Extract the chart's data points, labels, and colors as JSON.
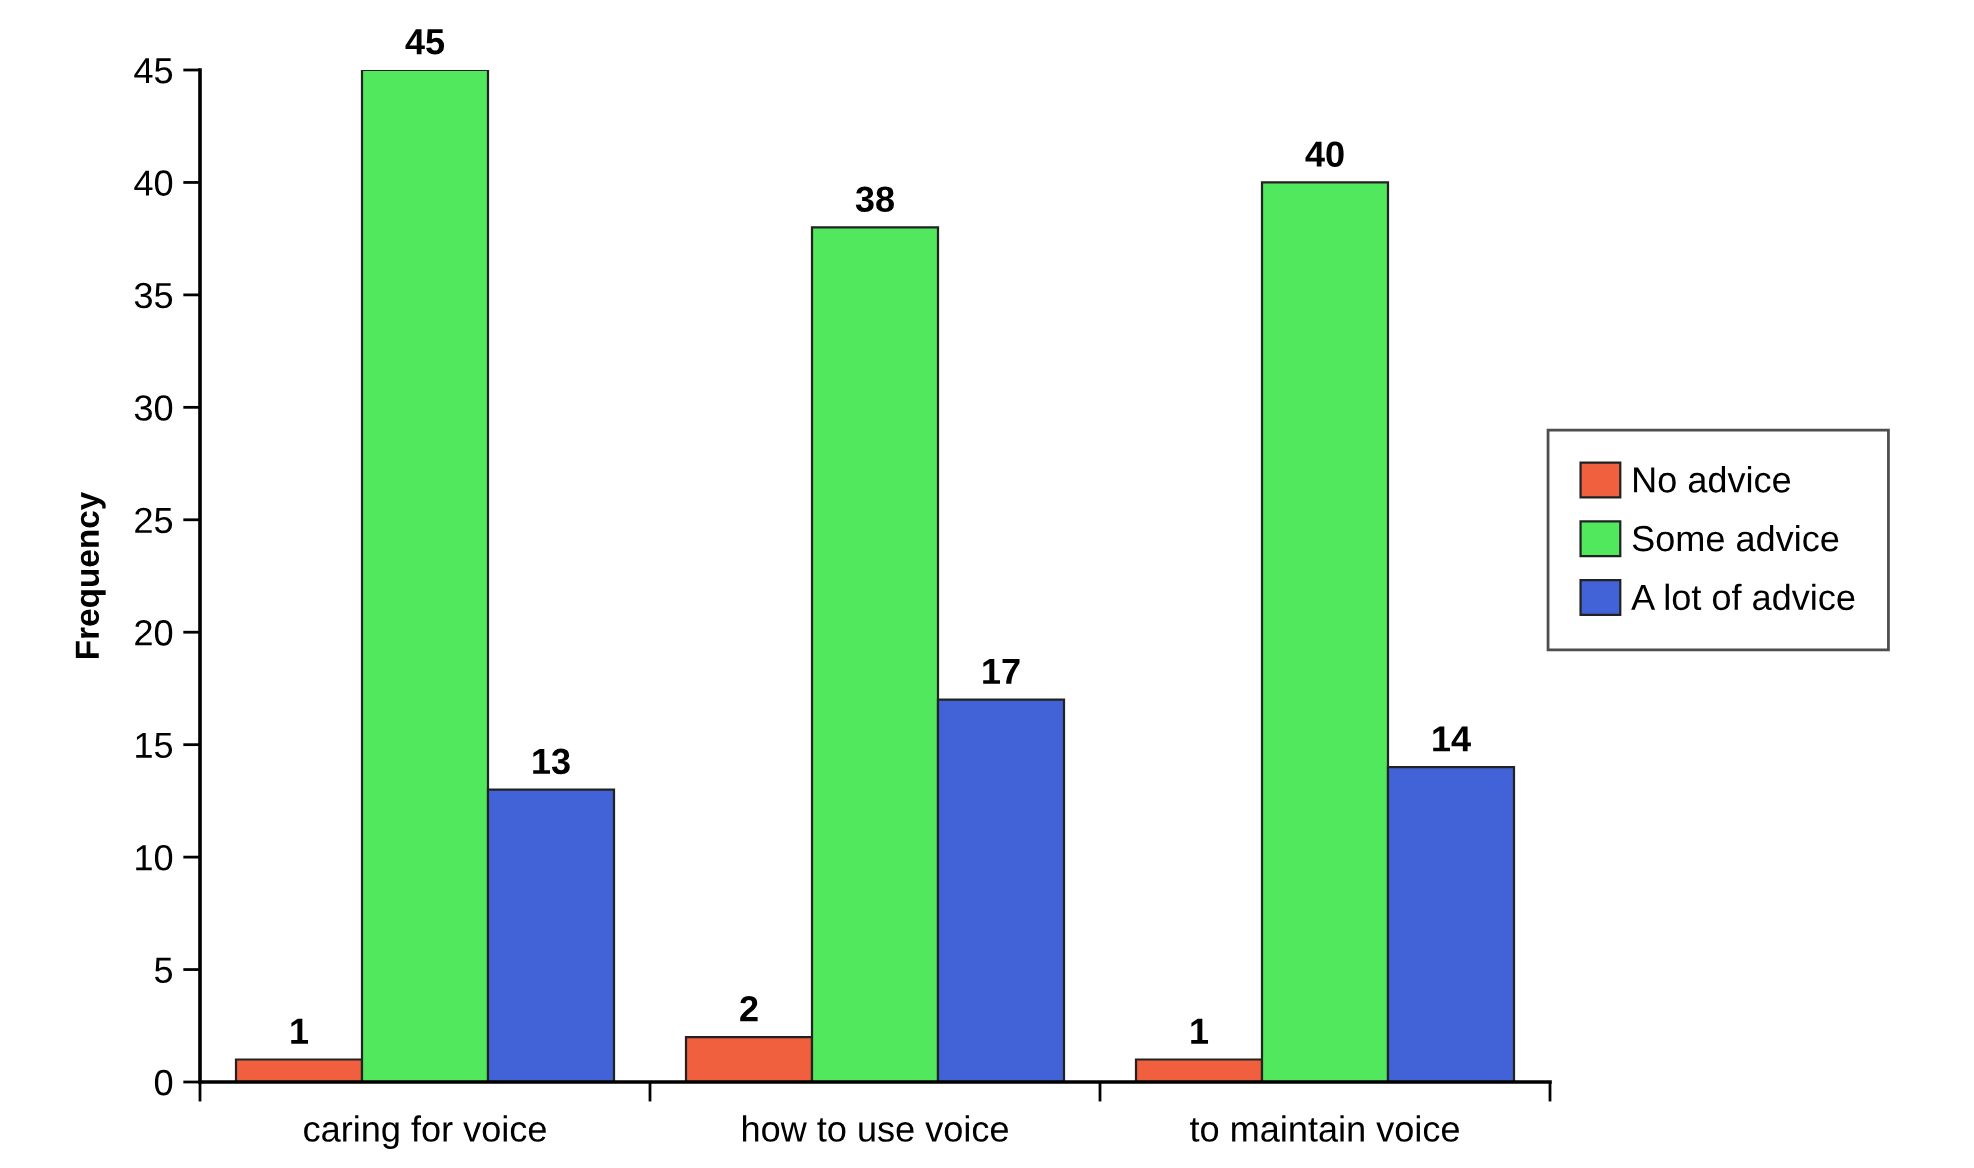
{
  "chart_data": {
    "type": "bar",
    "ylabel": "Frequency",
    "categories": [
      "caring for voice",
      "how to use voice",
      "to maintain voice"
    ],
    "series": [
      {
        "name": "No advice",
        "color": "#f0603f",
        "values": [
          1,
          2,
          1
        ]
      },
      {
        "name": "Some advice",
        "color": "#52e85e",
        "values": [
          45,
          38,
          40
        ]
      },
      {
        "name": "A lot of advice",
        "color": "#4263d8",
        "values": [
          13,
          17,
          14
        ]
      }
    ],
    "ylim": [
      0,
      45
    ],
    "yticks": [
      0,
      5,
      10,
      15,
      20,
      25,
      30,
      35,
      40,
      45
    ],
    "data_labels": true,
    "grid": false,
    "legend": "right"
  }
}
